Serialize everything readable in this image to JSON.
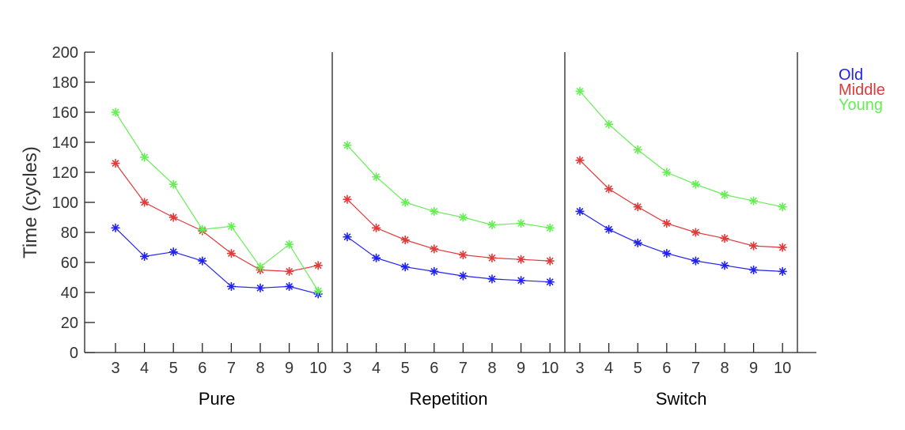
{
  "chart_data": {
    "type": "line",
    "ylabel": "Time (cycles)",
    "ylim": [
      0,
      200
    ],
    "yticks": [
      0,
      20,
      40,
      60,
      80,
      100,
      120,
      140,
      160,
      180,
      200
    ],
    "x": [
      3,
      4,
      5,
      6,
      7,
      8,
      9,
      10
    ],
    "x_tick_labels": [
      "3",
      "4",
      "5",
      "6",
      "7",
      "8",
      "9",
      "10"
    ],
    "grid": false,
    "legend_position": "top-right",
    "marker": "asterisk",
    "series_colors": {
      "Old": "#2222ee",
      "Middle": "#e03a3a",
      "Young": "#66ee55"
    },
    "legend": [
      {
        "name": "Old",
        "color": "#2222ee"
      },
      {
        "name": "Middle",
        "color": "#e03a3a"
      },
      {
        "name": "Young",
        "color": "#66ee55"
      }
    ],
    "panels": [
      {
        "title": "Pure",
        "series": [
          {
            "name": "Old",
            "values": [
              83,
              64,
              67,
              61,
              44,
              43,
              44,
              39
            ]
          },
          {
            "name": "Middle",
            "values": [
              126,
              100,
              90,
              81,
              66,
              55,
              54,
              58
            ]
          },
          {
            "name": "Young",
            "values": [
              160,
              130,
              112,
              82,
              84,
              57,
              72,
              41
            ]
          }
        ]
      },
      {
        "title": "Repetition",
        "series": [
          {
            "name": "Old",
            "values": [
              77,
              63,
              57,
              54,
              51,
              49,
              48,
              47
            ]
          },
          {
            "name": "Middle",
            "values": [
              102,
              83,
              75,
              69,
              65,
              63,
              62,
              61
            ]
          },
          {
            "name": "Young",
            "values": [
              138,
              117,
              100,
              94,
              90,
              85,
              86,
              83
            ]
          }
        ]
      },
      {
        "title": "Switch",
        "series": [
          {
            "name": "Old",
            "values": [
              94,
              82,
              73,
              66,
              61,
              58,
              55,
              54
            ]
          },
          {
            "name": "Middle",
            "values": [
              128,
              109,
              97,
              86,
              80,
              76,
              71,
              70
            ]
          },
          {
            "name": "Young",
            "values": [
              174,
              152,
              135,
              120,
              112,
              105,
              101,
              97
            ]
          }
        ]
      }
    ]
  }
}
